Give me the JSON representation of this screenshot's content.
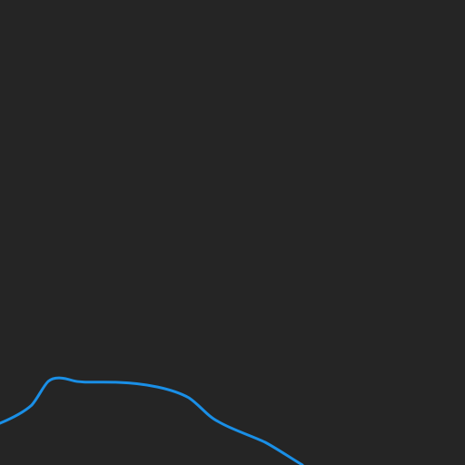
{
  "map": {
    "theme": "dark",
    "colors": {
      "background": "#252525",
      "route": "#1a8fe6"
    },
    "route": {
      "kind": "route-line"
    }
  }
}
